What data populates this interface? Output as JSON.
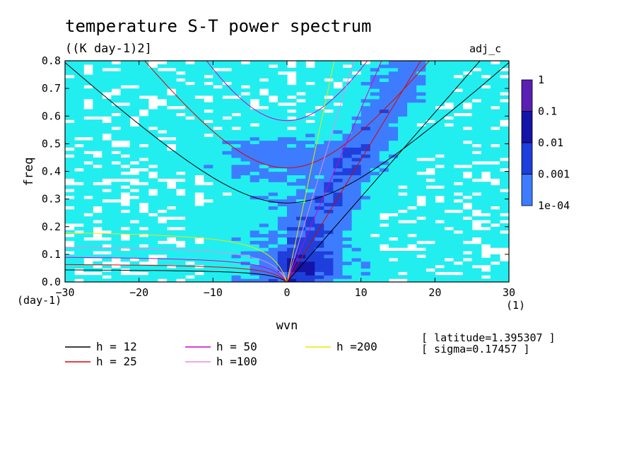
{
  "chart_data": {
    "type": "heatmap",
    "title": "temperature S-T power spectrum",
    "subtitle": "((K day-1)2]",
    "tag": "adj_c",
    "xlabel": "wvn",
    "ylabel": "freq",
    "xunit": "(1)",
    "yunit": "(day-1)",
    "xlim": [
      -30,
      30
    ],
    "ylim": [
      0,
      0.8
    ],
    "xticks": [
      -30,
      -20,
      -10,
      0,
      10,
      20,
      30
    ],
    "yticks": [
      0.0,
      0.1,
      0.2,
      0.3,
      0.4,
      0.5,
      0.6,
      0.7,
      0.8
    ],
    "colorbar": {
      "levels": [
        "1",
        "0.1",
        "0.01",
        "0.001",
        "1e-04"
      ],
      "colors": [
        "#5a1fb4",
        "#1414a8",
        "#1e3fdc",
        "#3d7cff",
        "#22eef0"
      ],
      "below_color": "#ffffff"
    },
    "dispersion_curves": [
      {
        "name": "h = 12",
        "h": 12,
        "color": "#000000"
      },
      {
        "name": "h = 25",
        "h": 25,
        "color": "#e00000"
      },
      {
        "name": "h = 50",
        "h": 50,
        "color": "#d000c8"
      },
      {
        "name": "h =100",
        "h": 100,
        "color": "#e888e8"
      },
      {
        "name": "h =200",
        "h": 200,
        "color": "#e8e800"
      }
    ],
    "annotations": [
      "[ latitude=1.395307 ]",
      "[ sigma=0.17457 ]"
    ],
    "grid": false,
    "legend_position": "bottom-left"
  }
}
